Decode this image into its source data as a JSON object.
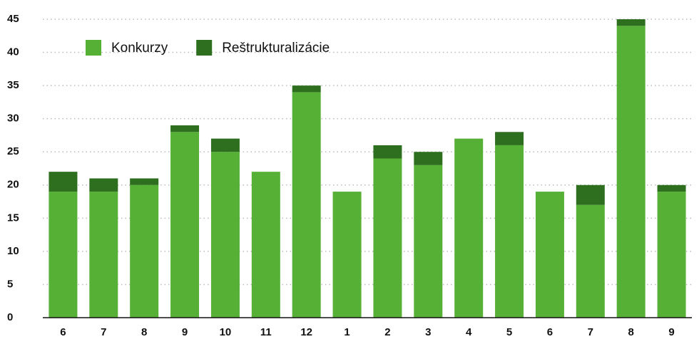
{
  "chart_data": {
    "type": "stacked_bar",
    "categories": [
      "6",
      "7",
      "8",
      "9",
      "10",
      "11",
      "12",
      "1",
      "2",
      "3",
      "4",
      "5",
      "6",
      "7",
      "8",
      "9"
    ],
    "series": [
      {
        "name": "Konkurzy",
        "color": "#56b036",
        "values": [
          19,
          19,
          20,
          28,
          25,
          22,
          34,
          19,
          24,
          23,
          27,
          26,
          19,
          17,
          44,
          19
        ]
      },
      {
        "name": "Reštrukturalizácie",
        "color": "#2e6f1f",
        "values": [
          3,
          2,
          1,
          1,
          2,
          0,
          1,
          0,
          2,
          2,
          0,
          2,
          0,
          3,
          1,
          1
        ]
      }
    ],
    "ylim": [
      0,
      45
    ],
    "yticks": [
      0,
      5,
      10,
      15,
      20,
      25,
      30,
      35,
      40,
      45
    ],
    "grid": true,
    "legend": "upper-left"
  }
}
